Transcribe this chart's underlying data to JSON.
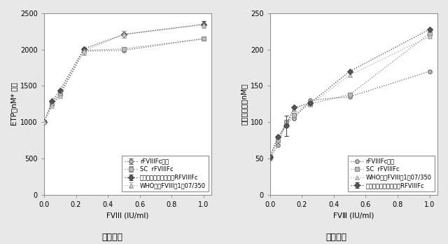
{
  "fig13A": {
    "xlabel": "FVlll (IU/ml)",
    "ylabel": "ETP（nM* 分）",
    "xlim": [
      0,
      1.05
    ],
    "ylim": [
      0,
      2500
    ],
    "xticks": [
      0.0,
      0.2,
      0.4,
      0.6,
      0.8,
      1.0
    ],
    "yticks": [
      0,
      500,
      1000,
      1500,
      2000,
      2500
    ],
    "series": [
      {
        "label": "rFVIIIFc原体",
        "x": [
          0.0,
          0.05,
          0.1,
          0.25,
          0.5,
          1.0
        ],
        "y": [
          1000,
          1240,
          1380,
          1980,
          1990,
          2150
        ],
        "yerr": [
          0,
          0,
          0,
          50,
          0,
          0
        ],
        "color": "#666666",
        "linestyle": "dotted",
        "marker": "o",
        "markerfacecolor": "#bbbbbb",
        "markersize": 4
      },
      {
        "label": "SC  rFVIIIFc",
        "x": [
          0.0,
          0.05,
          0.1,
          0.25,
          0.5,
          1.0
        ],
        "y": [
          1000,
          1260,
          1400,
          1990,
          2010,
          2150
        ],
        "yerr": [
          0,
          0,
          0,
          40,
          0,
          0
        ],
        "color": "#888888",
        "linestyle": "dotted",
        "marker": "s",
        "markerfacecolor": "#bbbbbb",
        "markersize": 4
      },
      {
        "label": "完全プロセシング済みRFVIIIFc",
        "x": [
          0.0,
          0.05,
          0.1,
          0.25,
          0.5,
          1.0
        ],
        "y": [
          1000,
          1290,
          1440,
          2010,
          2210,
          2350
        ],
        "yerr": [
          0,
          0,
          0,
          0,
          50,
          40
        ],
        "color": "#444444",
        "linestyle": "dotted",
        "marker": "D",
        "markerfacecolor": "#555555",
        "markersize": 4
      },
      {
        "label": "WHO標準FVIII　1　07/350",
        "x": [
          0.0,
          0.05,
          0.1,
          0.25,
          0.5,
          1.0
        ],
        "y": [
          1000,
          1220,
          1360,
          1980,
          2210,
          2340
        ],
        "yerr": [
          0,
          0,
          0,
          0,
          50,
          40
        ],
        "color": "#aaaaaa",
        "linestyle": "dotted",
        "marker": "^",
        "markerfacecolor": "#cccccc",
        "markersize": 4
      }
    ]
  },
  "fig13B": {
    "xlabel": "FVⅢ (IU/ml)",
    "ylabel": "トロンビン（nM）",
    "xlim": [
      0,
      1.05
    ],
    "ylim": [
      0,
      250
    ],
    "xticks": [
      0.0,
      0.2,
      0.4,
      0.6,
      0.8,
      1.0
    ],
    "yticks": [
      0,
      50,
      100,
      150,
      200,
      250
    ],
    "series": [
      {
        "label": "rFVIIIFc原体",
        "x": [
          0.0,
          0.05,
          0.1,
          0.15,
          0.25,
          0.5,
          1.0
        ],
        "y": [
          50,
          68,
          100,
          105,
          130,
          135,
          170
        ],
        "yerr": [
          0,
          0,
          0,
          0,
          0,
          0,
          0
        ],
        "color": "#666666",
        "linestyle": "dotted",
        "marker": "o",
        "markerfacecolor": "#bbbbbb",
        "markersize": 4
      },
      {
        "label": "SC  rFVIIIFc",
        "x": [
          0.0,
          0.05,
          0.1,
          0.15,
          0.25,
          0.5,
          1.0
        ],
        "y": [
          52,
          75,
          100,
          110,
          125,
          138,
          222
        ],
        "yerr": [
          0,
          0,
          0,
          0,
          0,
          0,
          0
        ],
        "color": "#888888",
        "linestyle": "dotted",
        "marker": "s",
        "markerfacecolor": "#bbbbbb",
        "markersize": 4
      },
      {
        "label": "完全プロセシング済みRFVIIIFc",
        "x": [
          0.0,
          0.05,
          0.1,
          0.15,
          0.25,
          0.5,
          1.0
        ],
        "y": [
          52,
          80,
          95,
          120,
          126,
          170,
          228
        ],
        "yerr": [
          0,
          0,
          14,
          0,
          0,
          0,
          0
        ],
        "color": "#444444",
        "linestyle": "dotted",
        "marker": "D",
        "markerfacecolor": "#555555",
        "markersize": 4
      },
      {
        "label": "WHO標準FVIII　1　07/350",
        "x": [
          0.0,
          0.05,
          0.1,
          0.15,
          0.25,
          0.5,
          1.0
        ],
        "y": [
          52,
          80,
          95,
          118,
          124,
          165,
          218
        ],
        "yerr": [
          0,
          0,
          0,
          0,
          0,
          0,
          0
        ],
        "color": "#aaaaaa",
        "linestyle": "dotted",
        "marker": "^",
        "markerfacecolor": "#cccccc",
        "markersize": 4
      }
    ]
  },
  "background_color": "#e8e8e8",
  "plot_bg_color": "#ffffff",
  "figsize": [
    6.4,
    3.48
  ],
  "dpi": 100,
  "caption_A": "図１３Ａ",
  "caption_B": "図１３Ｂ",
  "legend_fontsize": 6.0,
  "tick_fontsize": 7,
  "label_fontsize": 7.5,
  "legend_labels_A": [
    "rFVIIIFc原体",
    "SC  rFVIIIFc",
    "完全プロセシング済みrFVIIIFc",
    "WHO標準FVIII　 07/350"
  ],
  "legend_labels_B": [
    "rFVIIIFc原体",
    "SC  rFVIIIFc",
    "完全プロセシング済みrFVIIIFc",
    "WHO標準FVIII　 07/350"
  ]
}
